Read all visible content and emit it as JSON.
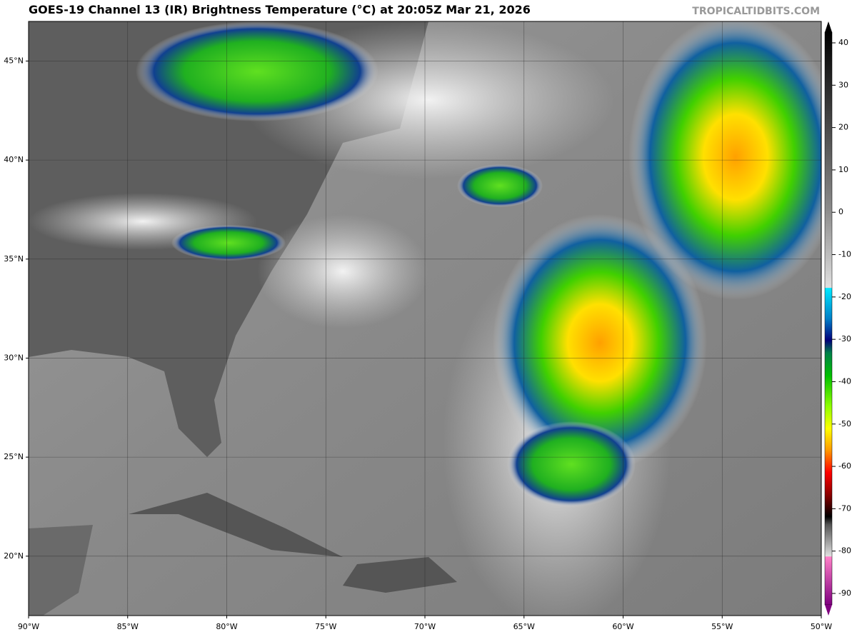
{
  "title": "GOES-19 Channel 13 (IR) Brightness Temperature (°C) at 20:05Z Mar 21, 2026",
  "credit": "TROPICALTIDBITS.COM",
  "map": {
    "xlim": [
      -90,
      -50
    ],
    "ylim": [
      17,
      47
    ],
    "lon_ticks": [
      {
        "value": -90,
        "label": "90°W"
      },
      {
        "value": -85,
        "label": "85°W"
      },
      {
        "value": -80,
        "label": "80°W"
      },
      {
        "value": -75,
        "label": "75°W"
      },
      {
        "value": -70,
        "label": "70°W"
      },
      {
        "value": -65,
        "label": "65°W"
      },
      {
        "value": -60,
        "label": "60°W"
      },
      {
        "value": -55,
        "label": "55°W"
      },
      {
        "value": -50,
        "label": "50°W"
      }
    ],
    "lat_ticks": [
      {
        "value": 20,
        "label": "20°N"
      },
      {
        "value": 25,
        "label": "25°N"
      },
      {
        "value": 30,
        "label": "30°N"
      },
      {
        "value": 35,
        "label": "35°N"
      },
      {
        "value": 40,
        "label": "40°N"
      },
      {
        "value": 45,
        "label": "45°N"
      }
    ]
  },
  "colorbar": {
    "lim": [
      -90,
      40
    ],
    "ticks": [
      40,
      30,
      20,
      10,
      0,
      -10,
      -20,
      -30,
      -40,
      -50,
      -60,
      -70,
      -80,
      -90
    ]
  }
}
